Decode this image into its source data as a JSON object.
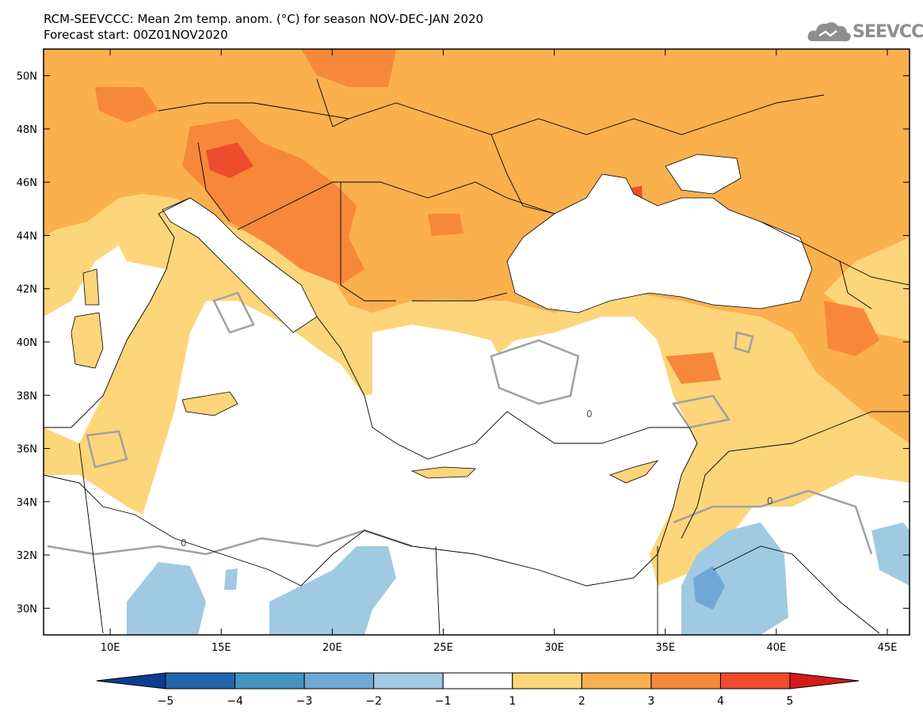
{
  "header": {
    "title_line1": "RCM-SEEVCCC: Mean 2m temp. anom. (°C) for season NOV-DEC-JAN 2020",
    "title_line2": "Forecast start: 00Z01NOV2020"
  },
  "logo": {
    "text": "SEEVCCC",
    "icon": "cloud-icon",
    "color": "#8e8e8e"
  },
  "map": {
    "lon_range": [
      7,
      46
    ],
    "lat_range": [
      29,
      51
    ],
    "lon_ticks": [
      {
        "value": 10,
        "label": "10E"
      },
      {
        "value": 15,
        "label": "15E"
      },
      {
        "value": 20,
        "label": "20E"
      },
      {
        "value": 25,
        "label": "25E"
      },
      {
        "value": 30,
        "label": "30E"
      },
      {
        "value": 35,
        "label": "35E"
      },
      {
        "value": 40,
        "label": "40E"
      },
      {
        "value": 45,
        "label": "45E"
      }
    ],
    "lat_ticks": [
      {
        "value": 30,
        "label": "30N"
      },
      {
        "value": 32,
        "label": "32N"
      },
      {
        "value": 34,
        "label": "34N"
      },
      {
        "value": 36,
        "label": "36N"
      },
      {
        "value": 38,
        "label": "38N"
      },
      {
        "value": 40,
        "label": "40N"
      },
      {
        "value": 42,
        "label": "42N"
      },
      {
        "value": 44,
        "label": "44N"
      },
      {
        "value": 46,
        "label": "46N"
      },
      {
        "value": 48,
        "label": "48N"
      },
      {
        "value": 50,
        "label": "50N"
      }
    ],
    "contour_label": "0",
    "region_colors": {
      "sea": "#ffffff",
      "band_1_2": "#fdd57b",
      "band_2_3": "#fbb04e",
      "band_3_4": "#f78839",
      "band_4_5": "#ee4c2c",
      "band_m1_m2": "#9fcae2",
      "band_m2_m3": "#6fa8d4",
      "contour": "#a0a0a0",
      "border": "#000000"
    }
  },
  "colorbar": {
    "labels": [
      "−5",
      "−4",
      "−3",
      "−2",
      "−1",
      "1",
      "2",
      "3",
      "4",
      "5"
    ],
    "colors": [
      "#0b3d91",
      "#2166ac",
      "#4393c3",
      "#6fa8d4",
      "#9fcae2",
      "#ffffff",
      "#fdd57b",
      "#fbb04e",
      "#f78839",
      "#ee4c2c",
      "#d7191c"
    ]
  }
}
